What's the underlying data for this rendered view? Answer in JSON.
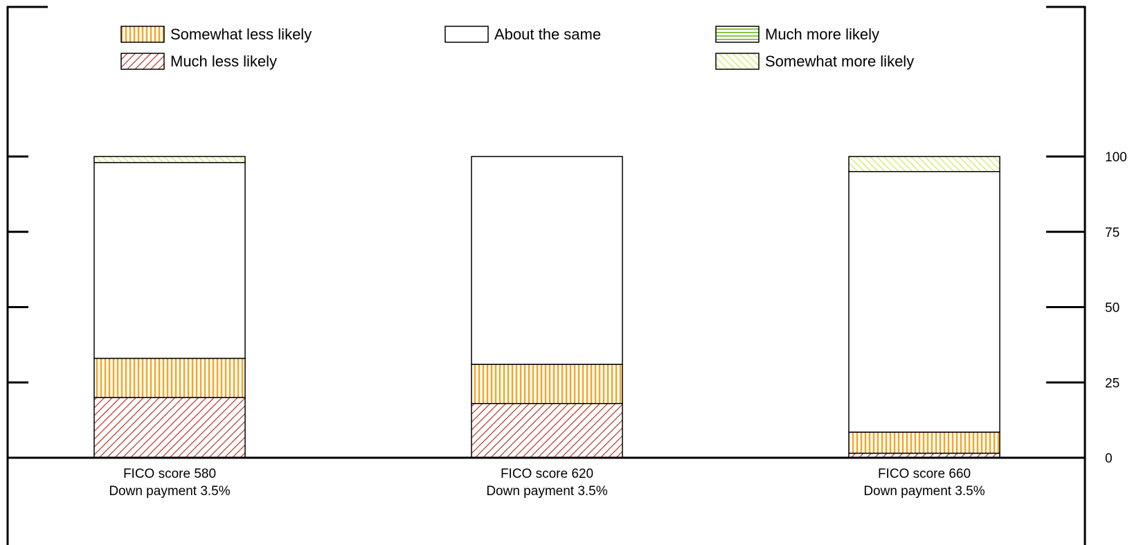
{
  "chart_data": {
    "type": "bar",
    "stacked": true,
    "title": "",
    "xlabel": "",
    "ylabel": "",
    "ylim": [
      0,
      100
    ],
    "y_ticks": [
      0,
      25,
      50,
      75,
      100
    ],
    "y_axis_side": "right",
    "grid": false,
    "legend_position": "top",
    "categories": [
      [
        "FICO score 580",
        "Down payment 3.5%"
      ],
      [
        "FICO score 620",
        "Down payment 3.5%"
      ],
      [
        "FICO score 660",
        "Down payment 3.5%"
      ]
    ],
    "series": [
      {
        "name": "Much less likely",
        "key": "much_less",
        "color": "#c0392b",
        "pattern": "diagonal-hatch",
        "values": [
          20,
          18,
          1.5
        ]
      },
      {
        "name": "Somewhat less likely",
        "key": "somewhat_less",
        "color": "#f5a623",
        "pattern": "vertical-stripes",
        "values": [
          13,
          13,
          7
        ]
      },
      {
        "name": "About the same",
        "key": "same",
        "color": "#ffffff",
        "pattern": "solid",
        "values": [
          65,
          69,
          86.5
        ]
      },
      {
        "name": "Somewhat more likely",
        "key": "somewhat_more",
        "color": "#d4e85a",
        "pattern": "back-diagonal-hatch",
        "values": [
          2,
          0,
          5
        ]
      },
      {
        "name": "Much more likely",
        "key": "much_more",
        "color": "#8bc34a",
        "pattern": "horizontal-stripes",
        "values": [
          0,
          0,
          0
        ]
      }
    ],
    "legend_order": [
      "somewhat_less",
      "same",
      "much_more",
      "much_less",
      "somewhat_more"
    ]
  }
}
